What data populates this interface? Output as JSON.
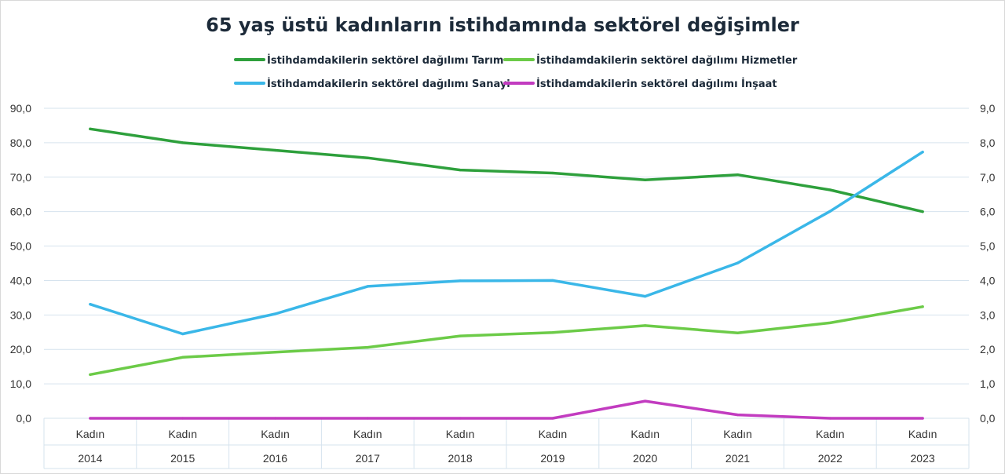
{
  "chart_data": {
    "type": "line",
    "title": "65 yaş üstü kadınların istihdamında sektörel değişimler",
    "x_sub_labels": [
      "Kadın",
      "Kadın",
      "Kadın",
      "Kadın",
      "Kadın",
      "Kadın",
      "Kadın",
      "Kadın",
      "Kadın",
      "Kadın"
    ],
    "categories": [
      "2014",
      "2015",
      "2016",
      "2017",
      "2018",
      "2019",
      "2020",
      "2021",
      "2022",
      "2023"
    ],
    "y_left": {
      "ylim": [
        0,
        90
      ],
      "ticks": [
        "0,0",
        "10,0",
        "20,0",
        "30,0",
        "40,0",
        "50,0",
        "60,0",
        "70,0",
        "80,0",
        "90,0"
      ]
    },
    "y_right": {
      "ylim": [
        0,
        9
      ],
      "ticks": [
        "0,0",
        "1,0",
        "2,0",
        "3,0",
        "4,0",
        "5,0",
        "6,0",
        "7,0",
        "8,0",
        "9,0"
      ]
    },
    "grid": true,
    "legend_position": "top",
    "series": [
      {
        "name": "İstihdamdakilerin sektörel dağılımı  Tarım",
        "axis": "left",
        "color": "#2ea03c",
        "values": [
          84.0,
          80.0,
          77.8,
          75.6,
          72.1,
          71.2,
          69.2,
          70.7,
          66.3,
          60.0
        ]
      },
      {
        "name": "İstihdamdakilerin sektörel dağılımı  Hizmetler",
        "axis": "left",
        "color": "#6ccb48",
        "values": [
          12.7,
          17.7,
          19.2,
          20.6,
          23.9,
          24.9,
          26.9,
          24.8,
          27.7,
          32.4
        ]
      },
      {
        "name": "İstihdamdakilerin sektörel dağılımı  Sanayi",
        "axis": "left",
        "color": "#3ab7e8",
        "values": [
          33.1,
          24.5,
          30.3,
          38.3,
          39.9,
          40.0,
          35.4,
          45.1,
          60.1,
          77.3
        ]
      },
      {
        "name": "İstihdamdakilerin sektörel dağılımı  İnşaat",
        "axis": "right",
        "color": "#c23cc0",
        "values": [
          0.0,
          0.0,
          0.0,
          0.0,
          0.0,
          0.0,
          0.5,
          0.1,
          0.0,
          0.0
        ]
      }
    ]
  }
}
